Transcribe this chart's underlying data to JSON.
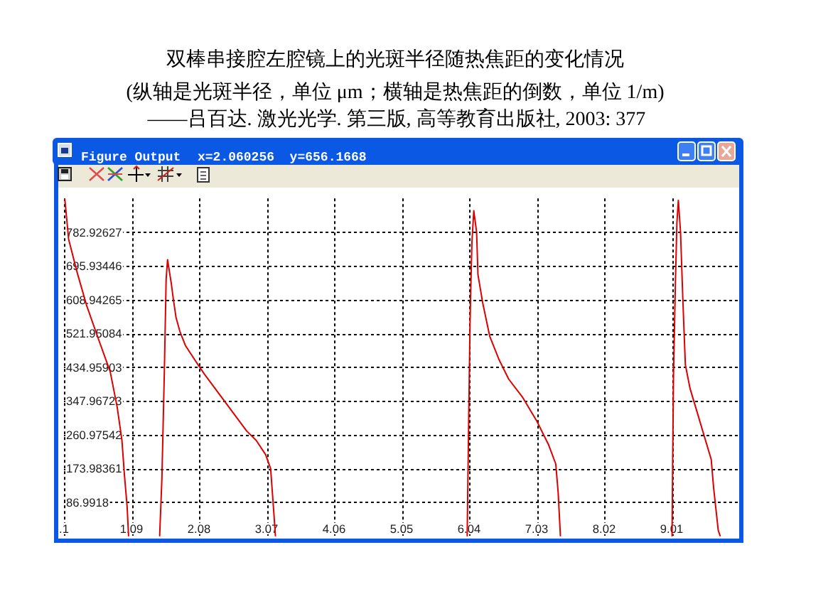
{
  "chart_data": {
    "type": "line",
    "title": "双棒串接腔左腔镜上的光斑半径随热焦距的变化情况",
    "subtitle": "(纵轴是光斑半径，单位 μm；横轴是热焦距的倒数，单位 1/m)",
    "annotations": [
      "——吕百达. 激光光学. 第三版, 高等教育出版社, 2003: 377",
      "Figure Output",
      "x=2.060256  y=656.1668"
    ],
    "series": [
      {
        "color": "#dd0000",
        "x": [
          0.113,
          0.168,
          0.293,
          0.432,
          0.604,
          0.778,
          0.881,
          0.95,
          0.985,
          1.026,
          1.047
        ],
        "values": [
          868,
          765,
          679,
          594,
          508,
          423,
          331,
          246,
          160,
          75,
          0
        ]
      },
      {
        "color": "#dd0000",
        "x": [
          1.503,
          1.536,
          1.571,
          1.598,
          1.619,
          1.648,
          1.675,
          1.702,
          1.743,
          1.799,
          1.882,
          2.02,
          2.158,
          2.365,
          2.572,
          2.779,
          2.918,
          3.057,
          3.13,
          3.15,
          3.18,
          3.2
        ],
        "values": [
          0,
          148,
          417,
          661,
          712,
          679,
          649,
          612,
          563,
          527,
          490,
          453,
          417,
          368,
          319,
          270,
          246,
          209,
          173,
          125,
          52,
          0
        ]
      },
      {
        "color": "#dd0000",
        "x": [
          6.012,
          6.02,
          6.053,
          6.068,
          6.082,
          6.109,
          6.15,
          6.17,
          6.24,
          6.343,
          6.482,
          6.62,
          6.828,
          7.035,
          7.207,
          7.311,
          7.346,
          7.379
        ],
        "values": [
          0,
          111,
          539,
          661,
          759,
          838,
          783,
          673,
          600,
          514,
          453,
          404,
          356,
          295,
          234,
          185,
          111,
          0
        ]
      },
      {
        "color": "#dd0000",
        "x": [
          9.016,
          9.024,
          9.037,
          9.066,
          9.087,
          9.108,
          9.14,
          9.176,
          9.211,
          9.279,
          9.383,
          9.486,
          9.59,
          9.625,
          9.693,
          9.72
        ],
        "values": [
          0,
          173,
          417,
          661,
          807,
          865,
          783,
          600,
          441,
          380,
          319,
          258,
          197,
          124,
          14,
          0
        ]
      }
    ],
    "xlim": [
      0.1,
      10.0
    ],
    "ylim": [
      0,
      869.918
    ],
    "xticks": [
      {
        "value": 0.1,
        "label": ".1"
      },
      1.09,
      2.08,
      3.07,
      4.06,
      5.05,
      6.04,
      7.03,
      8.02,
      9.01
    ],
    "yticks": [
      86.9918,
      173.98361,
      260.97542,
      347.96723,
      434.95903,
      521.95084,
      608.94265,
      695.93446,
      782.92627
    ],
    "grid": true
  }
}
